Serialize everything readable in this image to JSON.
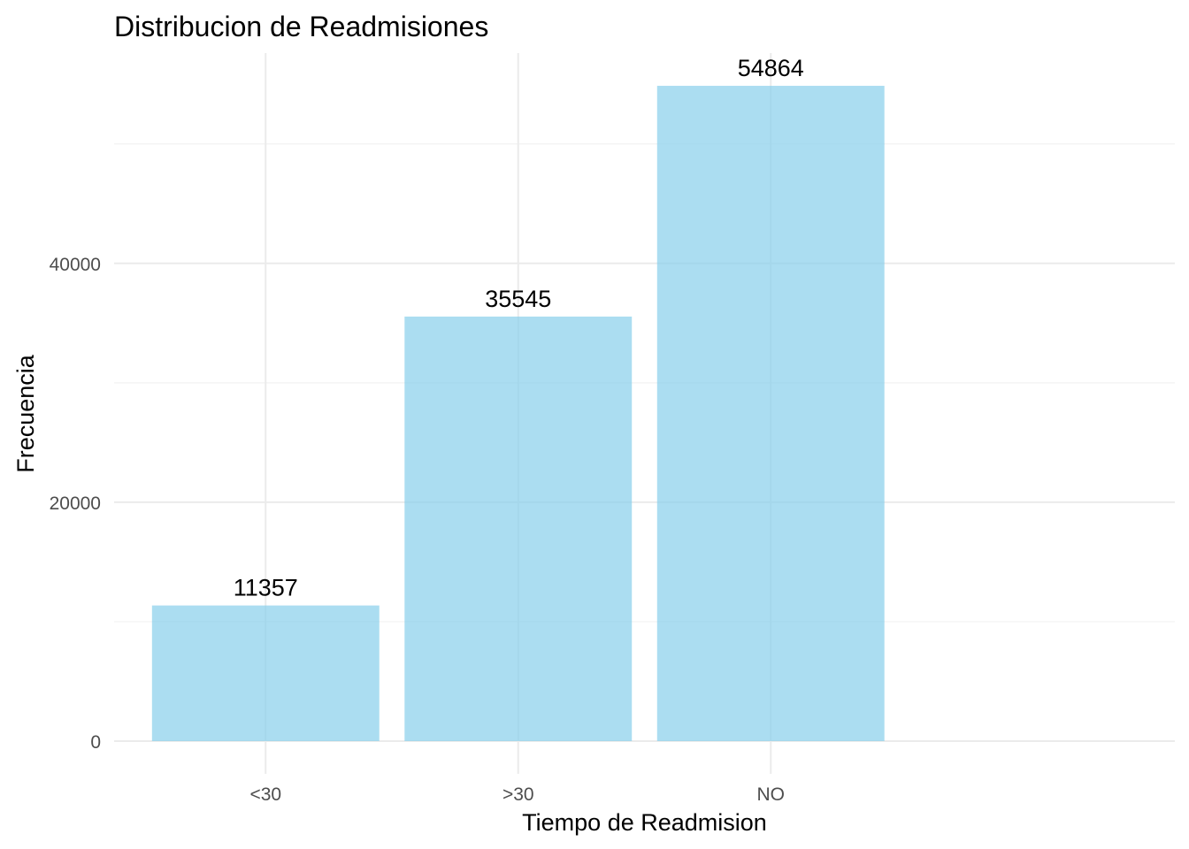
{
  "chart_data": {
    "type": "bar",
    "title": "Distribucion de Readmisiones",
    "xlabel": "Tiempo de Readmision",
    "ylabel": "Frecuencia",
    "categories": [
      "<30",
      ">30",
      "NO"
    ],
    "values": [
      11357,
      35545,
      54864
    ],
    "value_labels": [
      "11357",
      "35545",
      "54864"
    ],
    "ylim": [
      0,
      57607
    ],
    "y_ticks": [
      0,
      20000,
      40000
    ],
    "y_tick_labels": [
      "0",
      "20000",
      "40000"
    ],
    "y_minor_ticks": [
      10000,
      30000,
      50000
    ],
    "bar_color": "#87CEEB",
    "bar_opacity": 0.7,
    "grid": true,
    "legend": "none"
  }
}
